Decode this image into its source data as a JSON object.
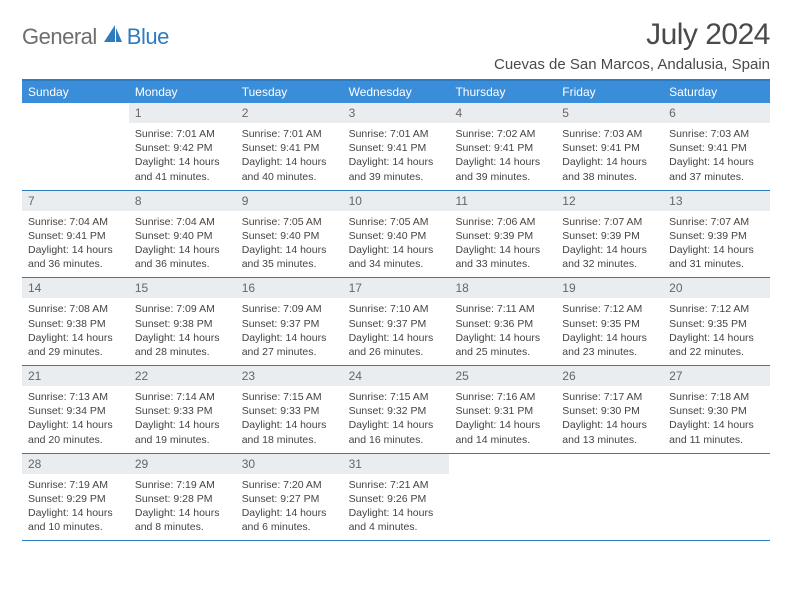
{
  "logo": {
    "text_general": "General",
    "text_blue": "Blue",
    "sail_color": "#2f7bc0",
    "general_color": "#6e6e6e"
  },
  "header": {
    "month_title": "July 2024",
    "location": "Cuevas de San Marcos, Andalusia, Spain"
  },
  "styling": {
    "header_row_bg": "#3a8dd8",
    "header_row_fg": "#ffffff",
    "daynum_bg": "#e9edf0",
    "daynum_fg": "#666666",
    "rule_color": "#2f7bc0",
    "body_text_color": "#444444",
    "page_bg": "#ffffff",
    "font_family": "Arial, Helvetica, sans-serif",
    "month_title_fontsize": 30,
    "location_fontsize": 15,
    "head_fontsize": 12,
    "daynum_fontsize": 12,
    "body_fontsize": 10.5,
    "columns": 7,
    "rows": 5
  },
  "day_headers": [
    "Sunday",
    "Monday",
    "Tuesday",
    "Wednesday",
    "Thursday",
    "Friday",
    "Saturday"
  ],
  "labels": {
    "sunrise": "Sunrise:",
    "sunset": "Sunset:",
    "daylight": "Daylight:"
  },
  "weeks": [
    [
      {
        "num": "",
        "sunrise": "",
        "sunset": "",
        "daylight": ""
      },
      {
        "num": "1",
        "sunrise": "7:01 AM",
        "sunset": "9:42 PM",
        "daylight": "14 hours and 41 minutes."
      },
      {
        "num": "2",
        "sunrise": "7:01 AM",
        "sunset": "9:41 PM",
        "daylight": "14 hours and 40 minutes."
      },
      {
        "num": "3",
        "sunrise": "7:01 AM",
        "sunset": "9:41 PM",
        "daylight": "14 hours and 39 minutes."
      },
      {
        "num": "4",
        "sunrise": "7:02 AM",
        "sunset": "9:41 PM",
        "daylight": "14 hours and 39 minutes."
      },
      {
        "num": "5",
        "sunrise": "7:03 AM",
        "sunset": "9:41 PM",
        "daylight": "14 hours and 38 minutes."
      },
      {
        "num": "6",
        "sunrise": "7:03 AM",
        "sunset": "9:41 PM",
        "daylight": "14 hours and 37 minutes."
      }
    ],
    [
      {
        "num": "7",
        "sunrise": "7:04 AM",
        "sunset": "9:41 PM",
        "daylight": "14 hours and 36 minutes."
      },
      {
        "num": "8",
        "sunrise": "7:04 AM",
        "sunset": "9:40 PM",
        "daylight": "14 hours and 36 minutes."
      },
      {
        "num": "9",
        "sunrise": "7:05 AM",
        "sunset": "9:40 PM",
        "daylight": "14 hours and 35 minutes."
      },
      {
        "num": "10",
        "sunrise": "7:05 AM",
        "sunset": "9:40 PM",
        "daylight": "14 hours and 34 minutes."
      },
      {
        "num": "11",
        "sunrise": "7:06 AM",
        "sunset": "9:39 PM",
        "daylight": "14 hours and 33 minutes."
      },
      {
        "num": "12",
        "sunrise": "7:07 AM",
        "sunset": "9:39 PM",
        "daylight": "14 hours and 32 minutes."
      },
      {
        "num": "13",
        "sunrise": "7:07 AM",
        "sunset": "9:39 PM",
        "daylight": "14 hours and 31 minutes."
      }
    ],
    [
      {
        "num": "14",
        "sunrise": "7:08 AM",
        "sunset": "9:38 PM",
        "daylight": "14 hours and 29 minutes."
      },
      {
        "num": "15",
        "sunrise": "7:09 AM",
        "sunset": "9:38 PM",
        "daylight": "14 hours and 28 minutes."
      },
      {
        "num": "16",
        "sunrise": "7:09 AM",
        "sunset": "9:37 PM",
        "daylight": "14 hours and 27 minutes."
      },
      {
        "num": "17",
        "sunrise": "7:10 AM",
        "sunset": "9:37 PM",
        "daylight": "14 hours and 26 minutes."
      },
      {
        "num": "18",
        "sunrise": "7:11 AM",
        "sunset": "9:36 PM",
        "daylight": "14 hours and 25 minutes."
      },
      {
        "num": "19",
        "sunrise": "7:12 AM",
        "sunset": "9:35 PM",
        "daylight": "14 hours and 23 minutes."
      },
      {
        "num": "20",
        "sunrise": "7:12 AM",
        "sunset": "9:35 PM",
        "daylight": "14 hours and 22 minutes."
      }
    ],
    [
      {
        "num": "21",
        "sunrise": "7:13 AM",
        "sunset": "9:34 PM",
        "daylight": "14 hours and 20 minutes."
      },
      {
        "num": "22",
        "sunrise": "7:14 AM",
        "sunset": "9:33 PM",
        "daylight": "14 hours and 19 minutes."
      },
      {
        "num": "23",
        "sunrise": "7:15 AM",
        "sunset": "9:33 PM",
        "daylight": "14 hours and 18 minutes."
      },
      {
        "num": "24",
        "sunrise": "7:15 AM",
        "sunset": "9:32 PM",
        "daylight": "14 hours and 16 minutes."
      },
      {
        "num": "25",
        "sunrise": "7:16 AM",
        "sunset": "9:31 PM",
        "daylight": "14 hours and 14 minutes."
      },
      {
        "num": "26",
        "sunrise": "7:17 AM",
        "sunset": "9:30 PM",
        "daylight": "14 hours and 13 minutes."
      },
      {
        "num": "27",
        "sunrise": "7:18 AM",
        "sunset": "9:30 PM",
        "daylight": "14 hours and 11 minutes."
      }
    ],
    [
      {
        "num": "28",
        "sunrise": "7:19 AM",
        "sunset": "9:29 PM",
        "daylight": "14 hours and 10 minutes."
      },
      {
        "num": "29",
        "sunrise": "7:19 AM",
        "sunset": "9:28 PM",
        "daylight": "14 hours and 8 minutes."
      },
      {
        "num": "30",
        "sunrise": "7:20 AM",
        "sunset": "9:27 PM",
        "daylight": "14 hours and 6 minutes."
      },
      {
        "num": "31",
        "sunrise": "7:21 AM",
        "sunset": "9:26 PM",
        "daylight": "14 hours and 4 minutes."
      },
      {
        "num": "",
        "sunrise": "",
        "sunset": "",
        "daylight": ""
      },
      {
        "num": "",
        "sunrise": "",
        "sunset": "",
        "daylight": ""
      },
      {
        "num": "",
        "sunrise": "",
        "sunset": "",
        "daylight": ""
      }
    ]
  ]
}
